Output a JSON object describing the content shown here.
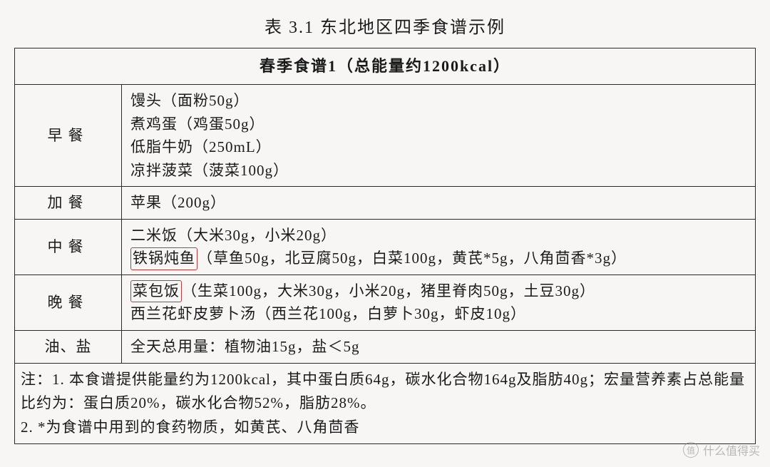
{
  "title": "表 3.1  东北地区四季食谱示例",
  "table": {
    "header": "春季食谱1（总能量约1200kcal）",
    "rows": [
      {
        "label": "早餐",
        "lines": [
          "馒头（面粉50g）",
          "煮鸡蛋（鸡蛋50g）",
          "低脂牛奶（250mL）",
          "凉拌菠菜（菠菜100g）"
        ]
      },
      {
        "label": "加餐",
        "lines": [
          "苹果（200g）"
        ]
      },
      {
        "label": "中餐",
        "pre_line": "二米饭（大米30g，小米20g）",
        "highlight": "铁锅炖鱼",
        "after_highlight": "（草鱼50g，北豆腐50g，白菜100g，黄芪*5g，八角茴香*3g）"
      },
      {
        "label": "晚餐",
        "highlight": "菜包饭",
        "after_highlight": "（生菜100g，大米30g，小米20g，猪里脊肉50g，土豆30g）",
        "post_line": "西兰花虾皮萝卜汤（西兰花100g，白萝卜30g，虾皮10g）"
      },
      {
        "label": "油、盐",
        "lines": [
          "全天总用量：植物油15g，盐＜5g"
        ]
      }
    ],
    "note": {
      "line1": "注：1. 本食谱提供能量约为1200kcal，其中蛋白质64g，碳水化合物164g及脂肪40g；宏量营养素占总能量比约为：蛋白质20%，碳水化合物52%，脂肪28%。",
      "line2": "2. *为食谱中用到的食药物质，如黄芪、八角茴香"
    }
  },
  "watermark": {
    "icon_text": "值",
    "text": "什么值得买"
  },
  "style": {
    "background_color": "#f7f6f4",
    "border_color": "#2a2a2a",
    "highlight_border_color": "#c93838",
    "text_color": "#1a1a1a",
    "title_fontsize": 24,
    "body_fontsize": 21,
    "font_family": "SimSun"
  }
}
